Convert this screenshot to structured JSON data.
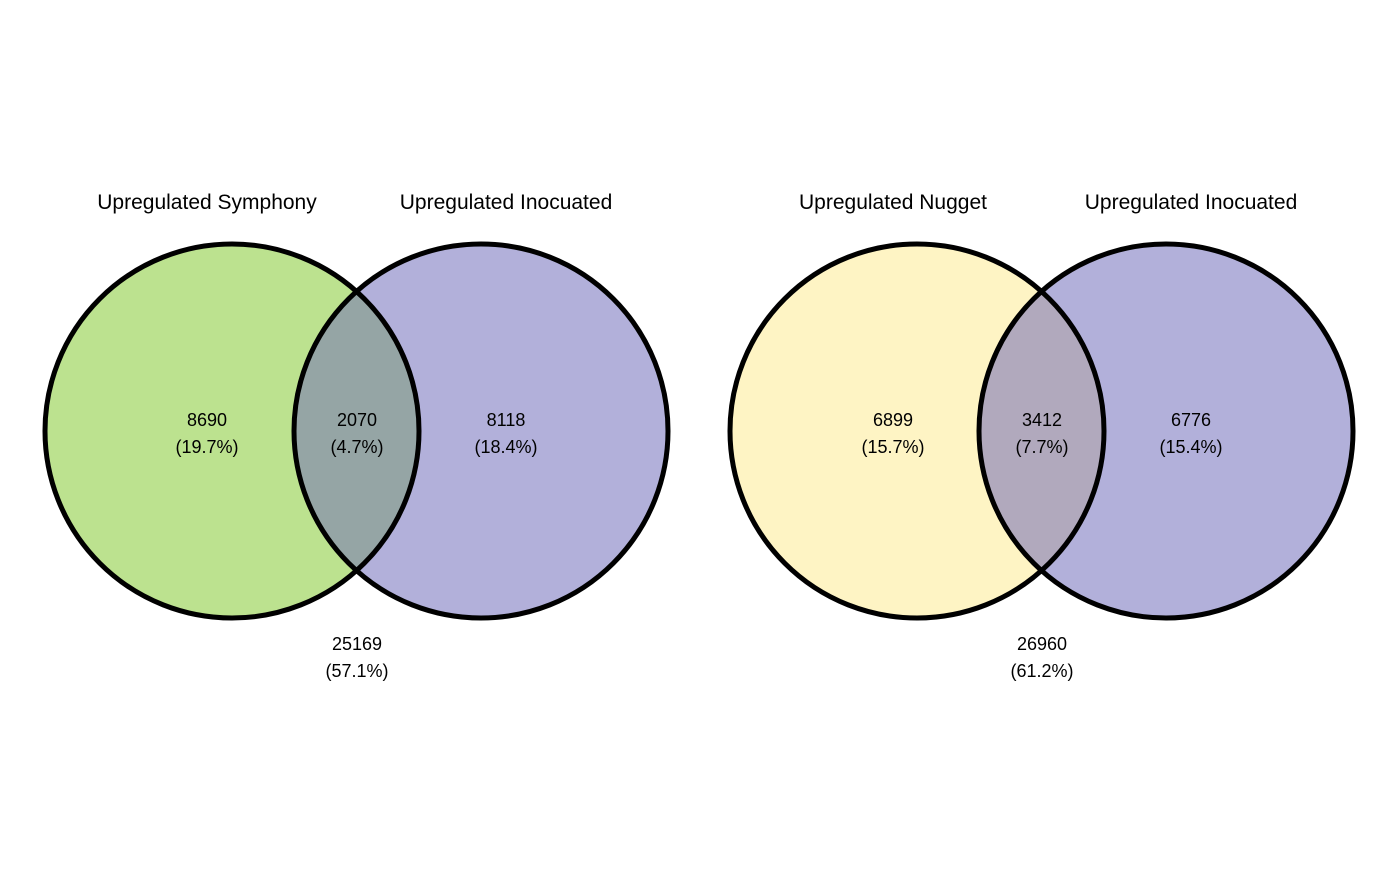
{
  "venn_diagrams": [
    {
      "left_set": {
        "label": "Upregulated Symphony",
        "color": "#bce28f",
        "only_count": "8690",
        "only_percent": "(19.7%)"
      },
      "right_set": {
        "label": "Upregulated Inocuated",
        "color": "#b2b0da",
        "only_count": "8118",
        "only_percent": "(18.4%)"
      },
      "overlap": {
        "color": "#95a5a5",
        "count": "2070",
        "percent": "(4.7%)"
      },
      "outside": {
        "count": "25169",
        "percent": "(57.1%)"
      }
    },
    {
      "left_set": {
        "label": "Upregulated Nugget",
        "color": "#fef4c4",
        "only_count": "6899",
        "only_percent": "(15.7%)"
      },
      "right_set": {
        "label": "Upregulated Inocuated",
        "color": "#b2b0da",
        "only_count": "6776",
        "only_percent": "(15.4%)"
      },
      "overlap": {
        "color": "#b1a9bd",
        "count": "3412",
        "percent": "(7.7%)"
      },
      "outside": {
        "count": "26960",
        "percent": "(61.2%)"
      }
    }
  ]
}
